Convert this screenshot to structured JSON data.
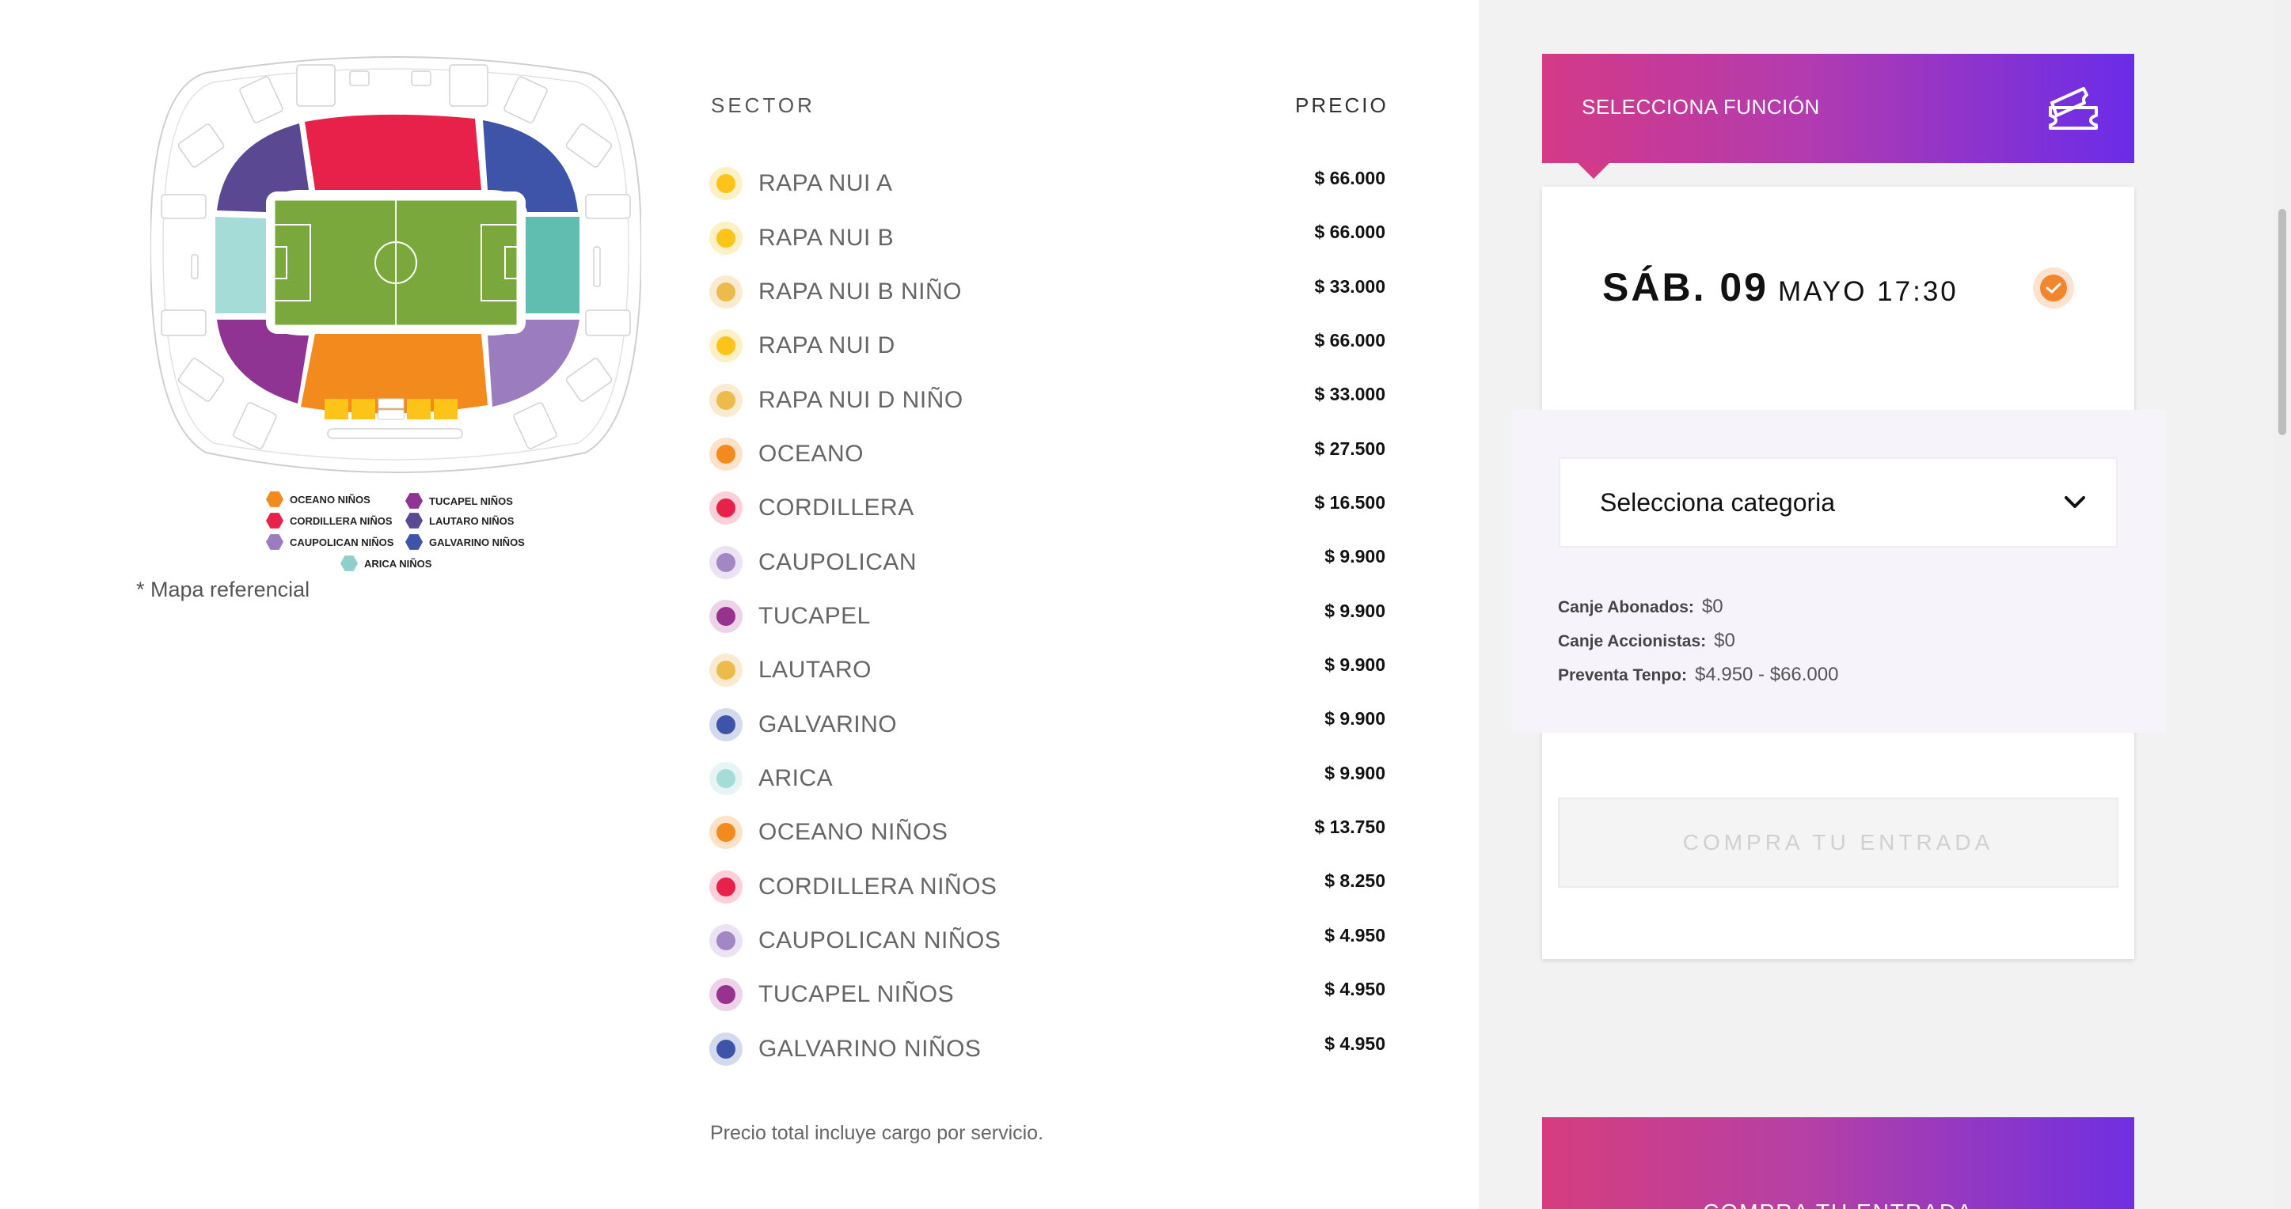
{
  "map": {
    "note": "* Mapa referencial",
    "legend": [
      {
        "label": "OCEANO NIÑOS",
        "color": "#f38a1e"
      },
      {
        "label": "CORDILLERA NIÑOS",
        "color": "#e8214a"
      },
      {
        "label": "CAUPOLICAN NIÑOS",
        "color": "#9b7cbf"
      },
      {
        "label": "TUCAPEL NIÑOS",
        "color": "#8f3493"
      },
      {
        "label": "LAUTARO NIÑOS",
        "color": "#5a4893"
      },
      {
        "label": "GALVARINO NIÑOS",
        "color": "#3d54a8"
      },
      {
        "label": "ARICA NIÑOS",
        "color": "#8fd0cc"
      }
    ]
  },
  "prices": {
    "header_sector": "SECTOR",
    "header_price": "PRECIO",
    "rows": [
      {
        "name": "RAPA NUI A",
        "price": "$ 66.000",
        "color": "#fcc419",
        "ring": "#fdf0c4"
      },
      {
        "name": "RAPA NUI B",
        "price": "$ 66.000",
        "color": "#fcc419",
        "ring": "#fdf0c4"
      },
      {
        "name": "RAPA NUI B NIÑO",
        "price": "$ 33.000",
        "color": "#edbb4c",
        "ring": "#f9ead0"
      },
      {
        "name": "RAPA NUI D",
        "price": "$ 66.000",
        "color": "#fcc419",
        "ring": "#fdf0c4"
      },
      {
        "name": "RAPA NUI D NIÑO",
        "price": "$ 33.000",
        "color": "#edbb4c",
        "ring": "#f9ead0"
      },
      {
        "name": "OCEANO",
        "price": "$ 27.500",
        "color": "#f38a1e",
        "ring": "#fde2c8"
      },
      {
        "name": "CORDILLERA",
        "price": "$ 16.500",
        "color": "#e8214a",
        "ring": "#fbd0d8"
      },
      {
        "name": "CAUPOLICAN",
        "price": "$ 9.900",
        "color": "#a386c4",
        "ring": "#ebe2f4"
      },
      {
        "name": "TUCAPEL",
        "price": "$ 9.900",
        "color": "#97328f",
        "ring": "#ecd3ea"
      },
      {
        "name": "LAUTARO",
        "price": "$ 9.900",
        "color": "#edbb4c",
        "ring": "#f9ead0"
      },
      {
        "name": "GALVARINO",
        "price": "$ 9.900",
        "color": "#3d54a8",
        "ring": "#d4daee"
      },
      {
        "name": "ARICA",
        "price": "$ 9.900",
        "color": "#a5dcd8",
        "ring": "#e6f5f4"
      },
      {
        "name": "OCEANO NIÑOS",
        "price": "$ 13.750",
        "color": "#f38a1e",
        "ring": "#fde2c8"
      },
      {
        "name": "CORDILLERA NIÑOS",
        "price": "$ 8.250",
        "color": "#e8214a",
        "ring": "#fbd0d8"
      },
      {
        "name": "CAUPOLICAN NIÑOS",
        "price": "$ 4.950",
        "color": "#a386c4",
        "ring": "#ebe2f4"
      },
      {
        "name": "TUCAPEL NIÑOS",
        "price": "$ 4.950",
        "color": "#97328f",
        "ring": "#ecd3ea"
      },
      {
        "name": "GALVARINO NIÑOS",
        "price": "$ 4.950",
        "color": "#3d54a8",
        "ring": "#d4daee"
      }
    ],
    "footnote": "Precio total incluye cargo por servicio."
  },
  "function": {
    "header_title": "SELECCIONA FUNCIÓN",
    "ticket_icon": "ticket-icon",
    "date_day": "SÁB. 09",
    "date_time": "MAYO 17:30",
    "selected": true,
    "select_placeholder": "Selecciona categoria",
    "info": [
      {
        "label": "Canje Abonados:",
        "value": "$0"
      },
      {
        "label": "Canje Accionistas:",
        "value": "$0"
      },
      {
        "label": "Preventa Tenpo:",
        "value": "$4.950 - $66.000"
      }
    ],
    "buy_button": "COMPRA TU ENTRADA",
    "promo_text": "COMPRA TU ENTRADA"
  },
  "colors": {
    "accent_start": "#d43a86",
    "accent_end": "#6a2ce8",
    "check": "#f2862e",
    "field": "#7aa83c"
  }
}
